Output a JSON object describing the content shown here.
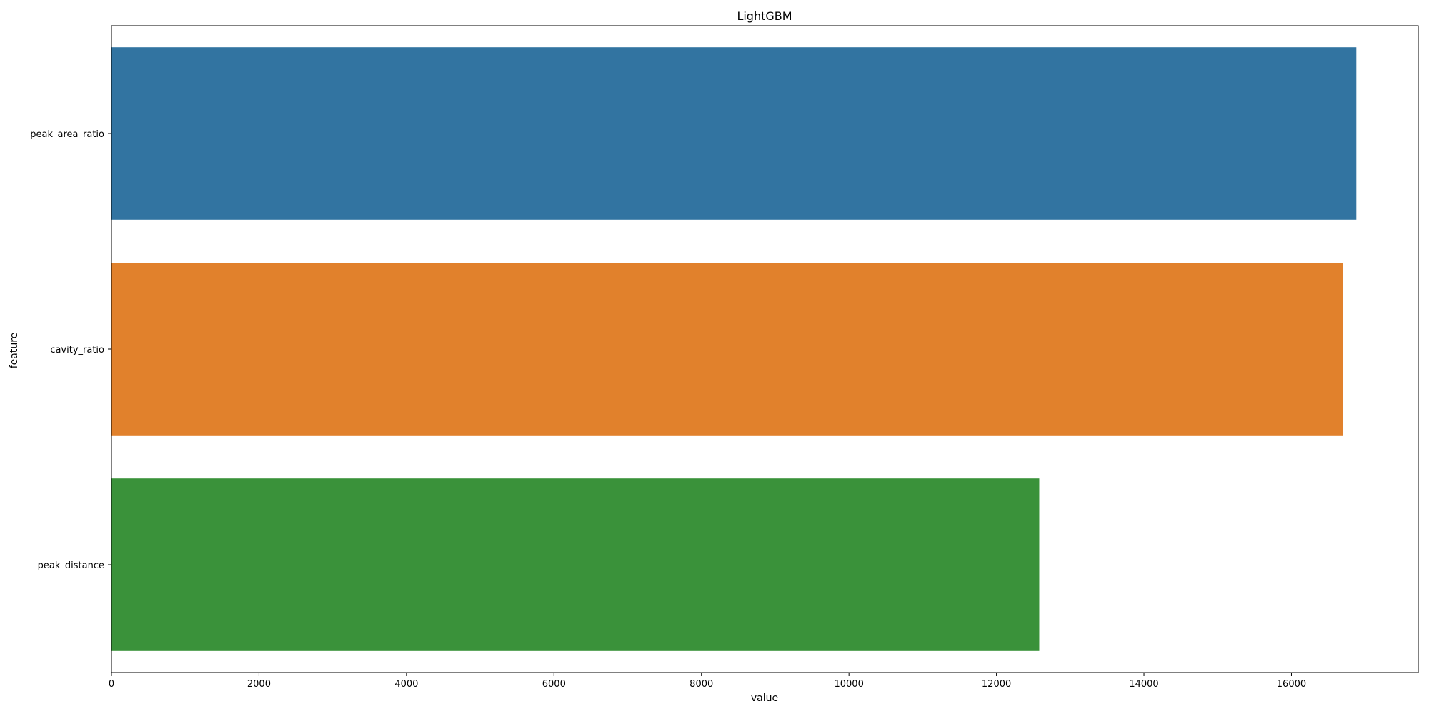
{
  "chart_data": {
    "type": "bar",
    "orientation": "horizontal",
    "title": "LightGBM",
    "xlabel": "value",
    "ylabel": "feature",
    "categories": [
      "peak_area_ratio",
      "cavity_ratio",
      "peak_distance"
    ],
    "values": [
      16880,
      16700,
      12580
    ],
    "colors": [
      "#3274a1",
      "#e1812c",
      "#3a923a"
    ],
    "xlim": [
      0,
      17720
    ],
    "xticks": [
      0,
      2000,
      4000,
      6000,
      8000,
      10000,
      12000,
      14000,
      16000
    ],
    "grid": false,
    "legend": "none"
  }
}
